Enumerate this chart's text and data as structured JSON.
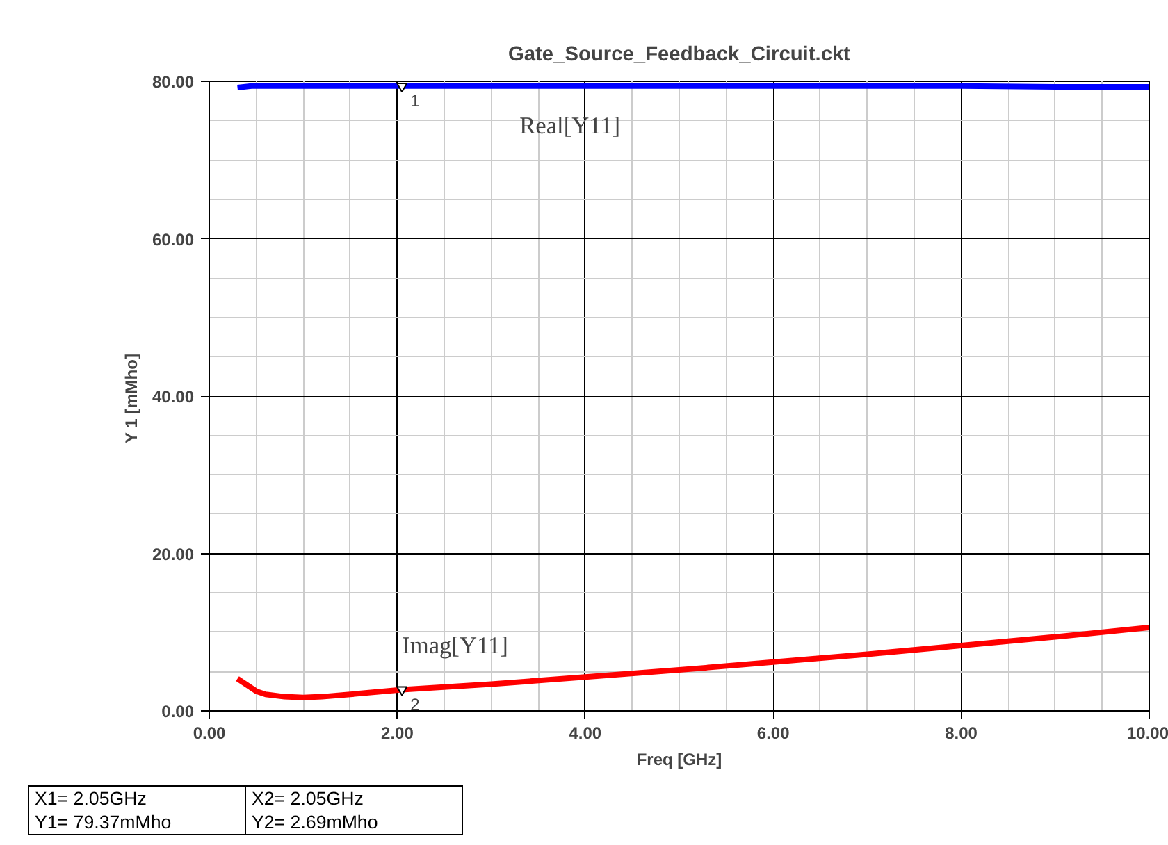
{
  "chart_data": {
    "type": "line",
    "title": "Gate_Source_Feedback_Circuit.ckt",
    "xlabel": "Freq [GHz]",
    "ylabel": "Y 1  [mMho]",
    "series": [
      {
        "name": "Real[Y11]",
        "color": "#0000ff",
        "x": [
          0.3,
          0.45,
          1,
          2.05,
          3,
          4,
          5,
          6,
          7,
          8,
          9,
          10
        ],
        "values": [
          79.2,
          79.4,
          79.4,
          79.4,
          79.4,
          79.4,
          79.4,
          79.4,
          79.4,
          79.4,
          79.3,
          79.3
        ]
      },
      {
        "name": "Imag[Y11]",
        "color": "#ff0000",
        "x": [
          0.3,
          0.4,
          0.5,
          0.6,
          0.8,
          1,
          1.2,
          1.5,
          2.05,
          3,
          4,
          5,
          6,
          7,
          8,
          9,
          10
        ],
        "values": [
          4.1,
          3.3,
          2.5,
          2.1,
          1.8,
          1.7,
          1.8,
          2.1,
          2.7,
          3.4,
          4.3,
          5.2,
          6.2,
          7.2,
          8.3,
          9.4,
          10.6
        ]
      }
    ],
    "xlim": [
      0,
      10
    ],
    "ylim": [
      0,
      80
    ],
    "xticks": [
      {
        "value": 0,
        "label": "0.00"
      },
      {
        "value": 2,
        "label": "2.00"
      },
      {
        "value": 4,
        "label": "4.00"
      },
      {
        "value": 6,
        "label": "6.00"
      },
      {
        "value": 8,
        "label": "8.00"
      },
      {
        "value": 10,
        "label": "10.00"
      }
    ],
    "yticks": [
      {
        "value": 0,
        "label": "0.00"
      },
      {
        "value": 20,
        "label": "20.00"
      },
      {
        "value": 40,
        "label": "40.00"
      },
      {
        "value": 60,
        "label": "60.00"
      },
      {
        "value": 80,
        "label": "80.00"
      }
    ],
    "grid": true,
    "line_style": "solid",
    "marker": "none",
    "legend": false,
    "annotations": [
      {
        "text": "1",
        "x": 2.05,
        "y": 79.37
      },
      {
        "text": "2",
        "x": 2.05,
        "y": 2.69
      },
      "X1= 2.05GHz",
      "Y1= 79.37mMho",
      "X2= 2.05GHz",
      "Y2= 2.69mMho"
    ]
  }
}
